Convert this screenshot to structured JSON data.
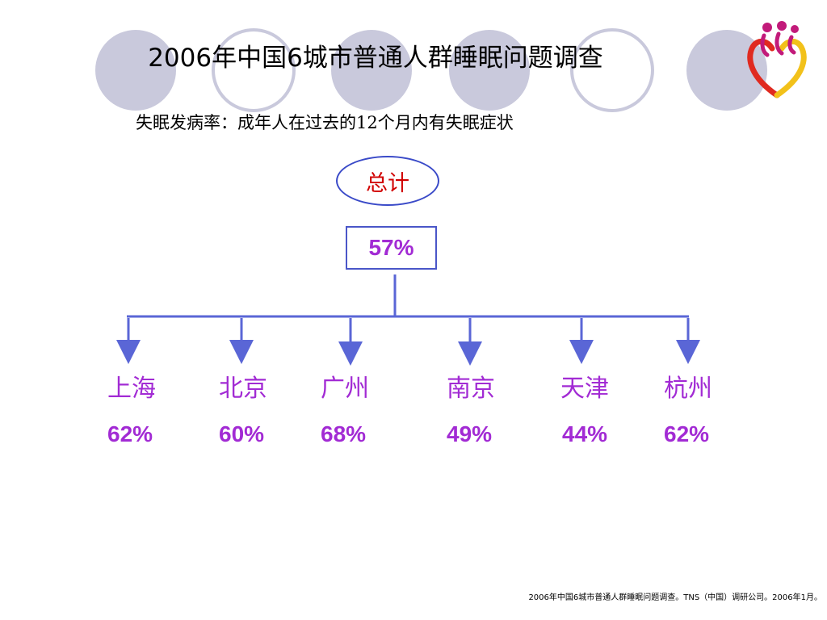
{
  "title": "2006年中国6城市普通人群睡眠问题调查",
  "subtitle": "失眠发病率：成年人在过去的12个月内有失眠症状",
  "total": {
    "label": "总计",
    "value": "57%"
  },
  "cities": [
    {
      "name": "上海",
      "value": "62%"
    },
    {
      "name": "北京",
      "value": "60%"
    },
    {
      "name": "广州",
      "value": "68%"
    },
    {
      "name": "南京",
      "value": "49%"
    },
    {
      "name": "天津",
      "value": "44%"
    },
    {
      "name": "杭州",
      "value": "62%"
    }
  ],
  "footer": "2006年中国6城市普通人群睡眠问题调查。TNS（中国）调研公司。2006年1月。",
  "colors": {
    "accent": "#a22bd4",
    "line": "#5a66d6",
    "total_label": "#d10000",
    "circle_fill": "#c9c9dc"
  }
}
